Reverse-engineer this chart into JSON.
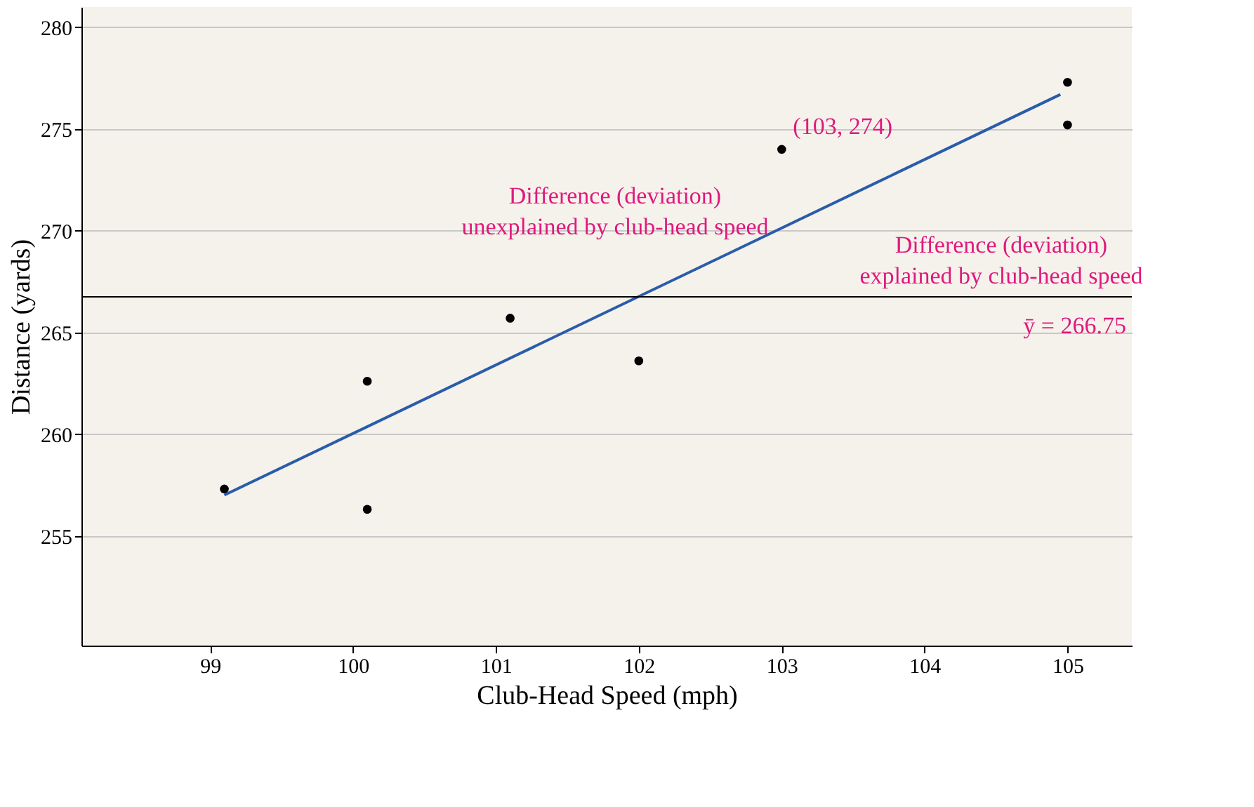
{
  "chart_data": {
    "type": "scatter",
    "xlabel": "Club-Head Speed (mph)",
    "ylabel": "Distance (yards)",
    "xlim": [
      98.1,
      105.45
    ],
    "ylim": [
      249.6,
      281
    ],
    "xticks": [
      99,
      100,
      101,
      102,
      103,
      104,
      105
    ],
    "yticks": [
      255,
      260,
      265,
      270,
      275,
      280
    ],
    "grid": "y",
    "series": [
      {
        "marker": "circle",
        "color": "#000000",
        "x": [
          99.1,
          100.1,
          100.1,
          101.1,
          102.0,
          103.0,
          105.0,
          105.0
        ],
        "values": [
          257.3,
          256.3,
          262.6,
          265.7,
          263.6,
          274.0,
          277.3,
          275.2
        ]
      },
      {
        "type": "line",
        "color": "#2a5caa",
        "x": [
          99.1,
          104.95
        ],
        "values": [
          257.0,
          276.7
        ]
      }
    ],
    "ref_lines": [
      {
        "axis": "y",
        "value": 266.75,
        "label": "ȳ = 266.75",
        "color": "#000000"
      }
    ],
    "annotations": [
      {
        "text": "(103, 274)",
        "x": 103,
        "y": 274
      },
      "Difference (deviation)\nunexplained by club-head speed",
      "Difference (deviation)\nexplained by club-head speed"
    ]
  }
}
